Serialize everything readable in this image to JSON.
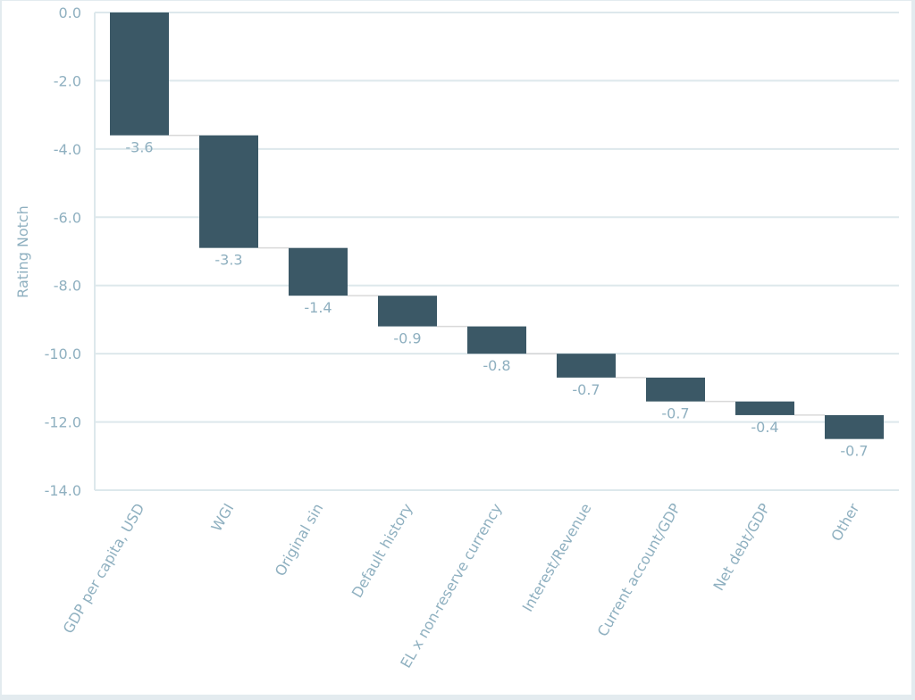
{
  "chart_data": {
    "type": "waterfall",
    "title": "",
    "xlabel": "",
    "ylabel": "Rating Notch",
    "ylim": [
      -14.0,
      0.0
    ],
    "yticks": [
      "0.0",
      "-2.0",
      "-4.0",
      "-6.0",
      "-8.0",
      "-10.0",
      "-12.0",
      "-14.0"
    ],
    "grid": true,
    "legend": null,
    "categories": [
      "GDP per capita, USD",
      "WGI",
      "Original sin",
      "Default history",
      "EL x non-reserve currency",
      "Interest/Revenue",
      "Current account/GDP",
      "Net debt/GDP",
      "Other"
    ],
    "values": [
      -3.6,
      -3.3,
      -1.4,
      -0.9,
      -0.8,
      -0.7,
      -0.7,
      -0.4,
      -0.7
    ],
    "value_labels": [
      "-3.6",
      "-3.3",
      "-1.4",
      "-0.9",
      "-0.8",
      "-0.7",
      "-0.7",
      "-0.4",
      "-0.7"
    ],
    "cumulative_end": [
      -3.6,
      -6.9,
      -8.3,
      -9.2,
      -10.0,
      -10.7,
      -11.4,
      -11.8,
      -12.5
    ],
    "colors": {
      "bar": "#3b5866",
      "connector": "#d9d9d9",
      "grid": "#dde8ec",
      "text": "#8fb0c0"
    }
  }
}
